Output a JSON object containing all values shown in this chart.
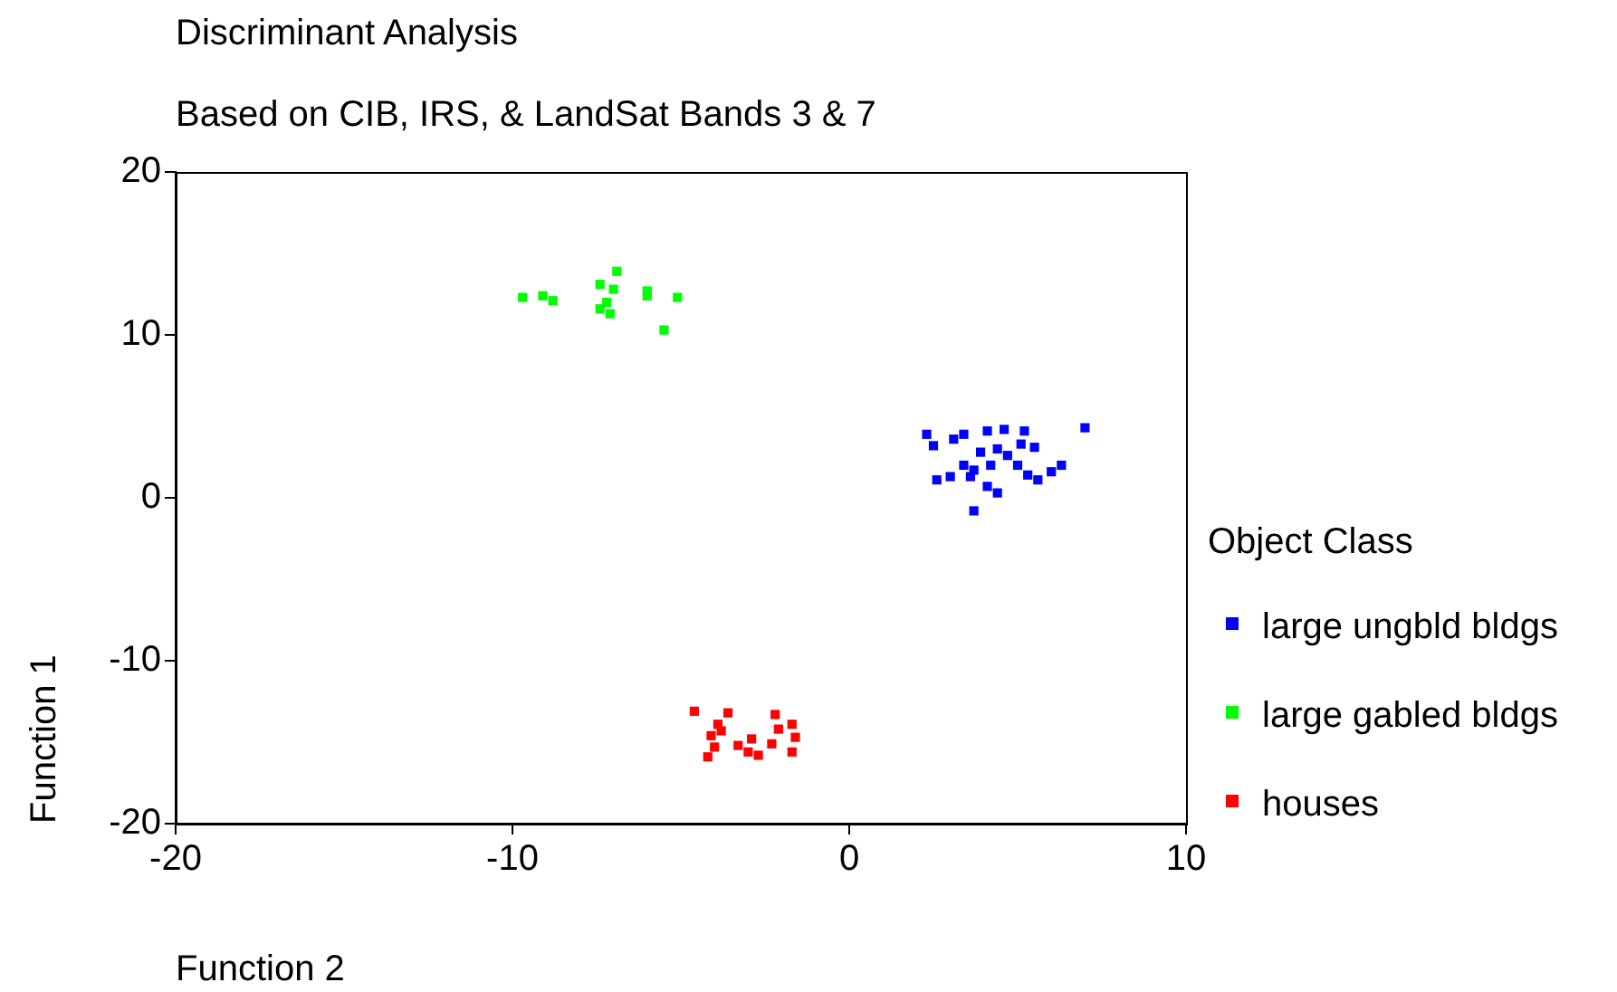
{
  "chart_data": {
    "type": "scatter",
    "title": "Discriminant Analysis",
    "subtitle": "Based on CIB, IRS, & LandSat Bands 3 & 7",
    "xlabel": "Function 2",
    "ylabel": "Function 1",
    "legend_title": "Object Class",
    "legend": "right",
    "marker": "square",
    "grid": false,
    "xlim": [
      -20,
      10
    ],
    "xticks": [
      -20,
      -10,
      0,
      10
    ],
    "ylim": [
      -20,
      20
    ],
    "yticks": [
      -20,
      -10,
      0,
      10,
      20
    ],
    "series": [
      {
        "name": "large ungbld bldgs",
        "color": "#0000ff",
        "x": [
          2.3,
          2.5,
          3.1,
          3.4,
          4.1,
          4.6,
          5.2,
          5.1,
          5.5,
          7.0,
          3.9,
          4.4,
          4.7,
          3.4,
          3.7,
          4.2,
          5.0,
          2.6,
          3.0,
          3.6,
          5.3,
          5.6,
          6.0,
          6.3,
          4.1,
          4.4,
          3.7
        ],
        "values": [
          3.9,
          3.2,
          3.6,
          3.9,
          4.1,
          4.2,
          4.1,
          3.3,
          3.1,
          4.3,
          2.8,
          3.0,
          2.6,
          2.0,
          1.7,
          2.0,
          2.0,
          1.1,
          1.3,
          1.3,
          1.4,
          1.1,
          1.6,
          2.0,
          0.7,
          0.3,
          -0.8
        ]
      },
      {
        "name": "large gabled bldgs",
        "color": "#00ff00",
        "x": [
          -9.7,
          -9.1,
          -8.8,
          -7.4,
          -6.9,
          -7.0,
          -7.2,
          -7.4,
          -7.1,
          -6.0,
          -6.0,
          -5.1,
          -5.5
        ],
        "values": [
          12.3,
          12.4,
          12.1,
          13.1,
          13.9,
          12.8,
          12.0,
          11.6,
          11.3,
          12.7,
          12.4,
          12.3,
          10.3
        ]
      },
      {
        "name": "houses",
        "color": "#ff0000",
        "x": [
          -4.6,
          -3.6,
          -3.9,
          -4.1,
          -3.8,
          -4.0,
          -4.2,
          -3.3,
          -2.9,
          -3.0,
          -2.7,
          -2.2,
          -2.1,
          -1.7,
          -2.3,
          -1.6,
          -1.7
        ],
        "values": [
          -13.1,
          -13.2,
          -13.9,
          -14.6,
          -14.3,
          -15.3,
          -15.9,
          -15.2,
          -14.8,
          -15.6,
          -15.8,
          -13.3,
          -14.2,
          -13.9,
          -15.1,
          -14.7,
          -15.6
        ]
      }
    ]
  }
}
